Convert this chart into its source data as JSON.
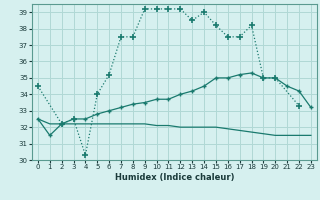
{
  "xlabel": "Humidex (Indice chaleur)",
  "x": [
    0,
    1,
    2,
    3,
    4,
    5,
    6,
    7,
    8,
    9,
    10,
    11,
    12,
    13,
    14,
    15,
    16,
    17,
    18,
    19,
    20,
    21,
    22,
    23
  ],
  "line1_x": [
    0,
    2,
    3,
    4,
    5,
    6,
    7,
    8,
    9,
    10,
    11,
    12,
    13,
    14,
    15,
    16,
    17,
    18,
    19,
    20,
    22
  ],
  "line1_y": [
    34.5,
    32.2,
    32.5,
    30.3,
    34.0,
    35.2,
    37.5,
    37.5,
    39.2,
    39.2,
    39.2,
    39.2,
    38.5,
    39.0,
    38.2,
    37.5,
    37.5,
    38.2,
    35.0,
    35.0,
    33.3
  ],
  "line2_x": [
    0,
    1,
    2,
    3,
    4,
    5,
    6,
    7,
    8,
    9,
    10,
    11,
    12,
    13,
    14,
    15,
    16,
    17,
    18,
    19,
    20,
    21,
    22,
    23
  ],
  "line2_y": [
    32.5,
    31.5,
    32.2,
    32.5,
    32.5,
    32.8,
    33.0,
    33.2,
    33.4,
    33.5,
    33.7,
    33.7,
    34.0,
    34.2,
    34.5,
    35.0,
    35.0,
    35.2,
    35.3,
    35.0,
    35.0,
    34.5,
    34.2,
    33.2
  ],
  "line3_x": [
    0,
    1,
    2,
    3,
    4,
    5,
    6,
    7,
    8,
    9,
    10,
    11,
    12,
    13,
    14,
    15,
    16,
    17,
    18,
    19,
    20,
    21,
    22,
    23
  ],
  "line3_y": [
    32.5,
    32.2,
    32.2,
    32.2,
    32.2,
    32.2,
    32.2,
    32.2,
    32.2,
    32.2,
    32.1,
    32.1,
    32.0,
    32.0,
    32.0,
    32.0,
    31.9,
    31.8,
    31.7,
    31.6,
    31.5,
    31.5,
    31.5,
    31.5
  ],
  "line_color": "#1a7a6e",
  "bg_color": "#d6f0ef",
  "grid_color": "#b0d8d5",
  "ylim": [
    30,
    39.5
  ],
  "yticks": [
    30,
    31,
    32,
    33,
    34,
    35,
    36,
    37,
    38,
    39
  ],
  "xlim": [
    -0.5,
    23.5
  ],
  "xticks": [
    0,
    1,
    2,
    3,
    4,
    5,
    6,
    7,
    8,
    9,
    10,
    11,
    12,
    13,
    14,
    15,
    16,
    17,
    18,
    19,
    20,
    21,
    22,
    23
  ]
}
